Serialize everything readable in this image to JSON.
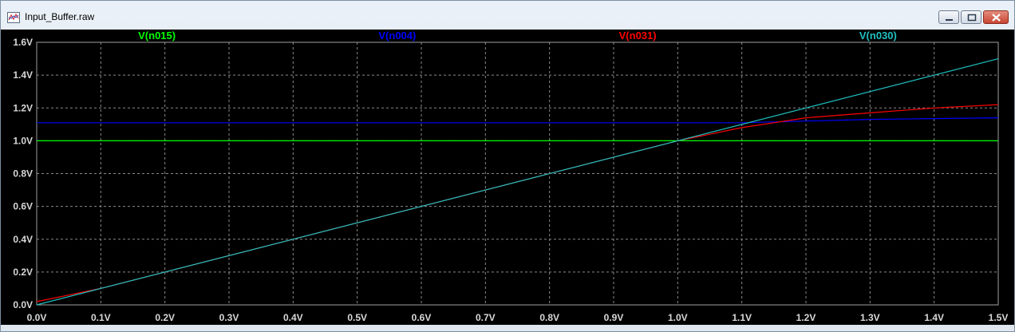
{
  "window": {
    "title": "Input_Buffer.raw",
    "buttons": {
      "minimize": "minimize-icon",
      "maximize": "maximize-icon",
      "close": "close-icon"
    },
    "app_icon": "waveform-viewer-icon"
  },
  "chart_data": {
    "type": "line",
    "xlabel": "",
    "ylabel": "",
    "xlim": [
      0.0,
      1.5
    ],
    "ylim": [
      0.0,
      1.6
    ],
    "grid": true,
    "background": "#000000",
    "x_ticks": [
      "0.0V",
      "0.1V",
      "0.2V",
      "0.3V",
      "0.4V",
      "0.5V",
      "0.6V",
      "0.7V",
      "0.8V",
      "0.9V",
      "1.0V",
      "1.1V",
      "1.2V",
      "1.3V",
      "1.4V",
      "1.5V"
    ],
    "y_ticks": [
      "0.0V",
      "0.2V",
      "0.4V",
      "0.6V",
      "0.8V",
      "1.0V",
      "1.2V",
      "1.4V",
      "1.6V"
    ],
    "series": [
      {
        "name": "V(n015)",
        "color": "#00ff00",
        "x": [
          0.0,
          1.5
        ],
        "y": [
          1.0,
          1.0
        ]
      },
      {
        "name": "V(n004)",
        "color": "#0000ff",
        "x": [
          0.0,
          0.5,
          1.0,
          1.1,
          1.2,
          1.3,
          1.4,
          1.5
        ],
        "y": [
          1.11,
          1.11,
          1.11,
          1.11,
          1.12,
          1.13,
          1.135,
          1.14
        ]
      },
      {
        "name": "V(n031)",
        "color": "#ff0000",
        "x": [
          0.0,
          0.05,
          0.1,
          0.2,
          0.5,
          0.9,
          1.0,
          1.05,
          1.1,
          1.15,
          1.2,
          1.3,
          1.4,
          1.5
        ],
        "y": [
          0.02,
          0.06,
          0.1,
          0.2,
          0.5,
          0.9,
          1.0,
          1.04,
          1.08,
          1.11,
          1.14,
          1.17,
          1.2,
          1.22
        ]
      },
      {
        "name": "V(n030)",
        "color": "#20c0c0",
        "x": [
          0.0,
          1.5
        ],
        "y": [
          0.0,
          1.5
        ]
      }
    ]
  }
}
